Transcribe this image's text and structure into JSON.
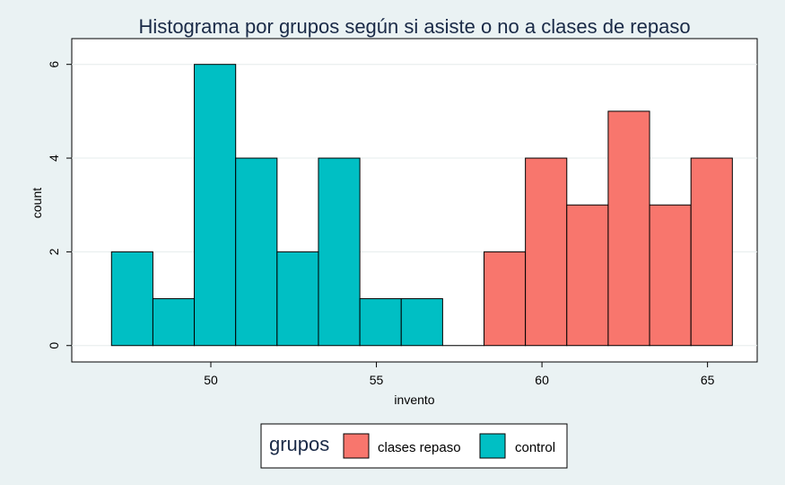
{
  "chart_data": {
    "type": "bar",
    "title": "Histograma por grupos según si asiste o no a clases de repaso",
    "xlabel": "invento",
    "ylabel": "count",
    "xlim": [
      45.8,
      66.5
    ],
    "ylim": [
      -0.35,
      6.55
    ],
    "x_ticks": [
      50,
      55,
      60,
      65
    ],
    "y_ticks": [
      0,
      2,
      4,
      6
    ],
    "grid": true,
    "bin_width": 1.25,
    "series": [
      {
        "name": "control",
        "color": "#00bfc4",
        "bins": [
          {
            "start": 47.0,
            "end": 48.25,
            "count": 2
          },
          {
            "start": 48.25,
            "end": 49.5,
            "count": 1
          },
          {
            "start": 49.5,
            "end": 50.75,
            "count": 6
          },
          {
            "start": 50.75,
            "end": 52.0,
            "count": 4
          },
          {
            "start": 52.0,
            "end": 53.25,
            "count": 2
          },
          {
            "start": 53.25,
            "end": 54.5,
            "count": 4
          },
          {
            "start": 54.5,
            "end": 55.75,
            "count": 1
          },
          {
            "start": 55.75,
            "end": 57.0,
            "count": 1
          },
          {
            "start": 57.0,
            "end": 58.25,
            "count": 0
          }
        ]
      },
      {
        "name": "clases repaso",
        "color": "#f8766d",
        "bins": [
          {
            "start": 58.25,
            "end": 59.5,
            "count": 2
          },
          {
            "start": 59.5,
            "end": 60.75,
            "count": 4
          },
          {
            "start": 60.75,
            "end": 62.0,
            "count": 3
          },
          {
            "start": 62.0,
            "end": 63.25,
            "count": 5
          },
          {
            "start": 63.25,
            "end": 64.5,
            "count": 3
          },
          {
            "start": 64.5,
            "end": 65.75,
            "count": 4
          }
        ]
      }
    ],
    "legend": {
      "title": "grupos",
      "position": "bottom",
      "entries": [
        {
          "label": "clases repaso",
          "color": "#f8766d"
        },
        {
          "label": "control",
          "color": "#00bfc4"
        }
      ]
    }
  }
}
